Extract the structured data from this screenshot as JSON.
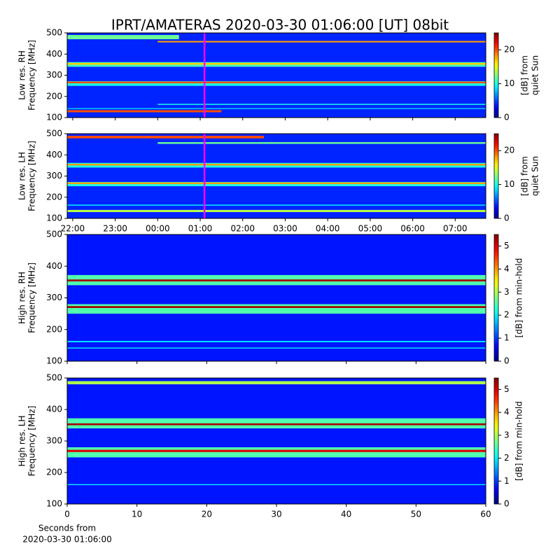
{
  "title": "IPRT/AMATERAS 2020-03-30 01:06:00 [UT]   08bit",
  "chart_data": [
    {
      "type": "heatmap",
      "ylabel": [
        "Low res. RH",
        "Frequency [MHz]"
      ],
      "ylim": [
        100,
        500
      ],
      "yticks": [
        100,
        200,
        300,
        400,
        500
      ],
      "xlim": [
        21.87,
        31.72
      ],
      "xticks": [
        22,
        23,
        24,
        25,
        26,
        27,
        28,
        29,
        30,
        31
      ],
      "marker_x": 25.1,
      "marker_color": "#ff00ff",
      "colorbar": {
        "label": [
          "[dB] from",
          "quiet Sun"
        ],
        "lim": [
          0,
          25
        ],
        "ticks": [
          0,
          10,
          20
        ]
      },
      "background": 4,
      "bands": [
        {
          "y0": 340,
          "y1": 362,
          "value": 11
        },
        {
          "y0": 250,
          "y1": 272,
          "value": 10
        },
        {
          "y0": 350,
          "y1": 358,
          "value": 17
        },
        {
          "y0": 262,
          "y1": 270,
          "value": 20
        },
        {
          "y0": 470,
          "y1": 490,
          "value": 12,
          "x0": 21.87,
          "x1": 24.5
        },
        {
          "y0": 455,
          "y1": 462,
          "value": 18,
          "x0": 24.0,
          "x1": 31.72
        },
        {
          "y0": 160,
          "y1": 165,
          "value": 10,
          "x0": 24.0,
          "x1": 31.72
        },
        {
          "y0": 140,
          "y1": 145,
          "value": 8
        },
        {
          "y0": 125,
          "y1": 135,
          "value": 20,
          "x0": 21.87,
          "x1": 25.5
        }
      ]
    },
    {
      "type": "heatmap",
      "ylabel": [
        "Low res. LH",
        "Frequency [MHz]"
      ],
      "ylim": [
        100,
        500
      ],
      "yticks": [
        100,
        200,
        300,
        400,
        500
      ],
      "xlim": [
        21.87,
        31.72
      ],
      "xticks": [
        {
          "value": 22,
          "label": "22:00"
        },
        {
          "value": 23,
          "label": "23:00"
        },
        {
          "value": 24,
          "label": "00:00"
        },
        {
          "value": 25,
          "label": "01:00"
        },
        {
          "value": 26,
          "label": "02:00"
        },
        {
          "value": 27,
          "label": "03:00"
        },
        {
          "value": 28,
          "label": "04:00"
        },
        {
          "value": 29,
          "label": "05:00"
        },
        {
          "value": 30,
          "label": "06:00"
        },
        {
          "value": 31,
          "label": "07:00"
        }
      ],
      "marker_x": 25.1,
      "marker_color": "#ff00ff",
      "colorbar": {
        "label": [
          "[dB] from",
          "quiet Sun"
        ],
        "lim": [
          0,
          25
        ],
        "ticks": [
          0,
          10,
          20
        ]
      },
      "background": 4,
      "bands": [
        {
          "y0": 340,
          "y1": 362,
          "value": 10
        },
        {
          "y0": 252,
          "y1": 272,
          "value": 10
        },
        {
          "y0": 350,
          "y1": 358,
          "value": 18
        },
        {
          "y0": 262,
          "y1": 270,
          "value": 18
        },
        {
          "y0": 478,
          "y1": 490,
          "value": 20,
          "x0": 21.87,
          "x1": 26.5
        },
        {
          "y0": 452,
          "y1": 460,
          "value": 12,
          "x0": 24.0,
          "x1": 31.72
        },
        {
          "y0": 160,
          "y1": 165,
          "value": 9
        },
        {
          "y0": 130,
          "y1": 140,
          "value": 14
        }
      ]
    },
    {
      "type": "heatmap",
      "ylabel": [
        "High res. RH",
        "Frequency [MHz]"
      ],
      "ylim": [
        100,
        500
      ],
      "yticks": [
        100,
        200,
        300,
        400,
        500
      ],
      "xlim": [
        0,
        60
      ],
      "xticks": [
        0,
        10,
        20,
        30,
        40,
        50,
        60
      ],
      "colorbar": {
        "label": [
          "[dB] from min-hold"
        ],
        "lim": [
          0,
          5.5
        ],
        "ticks": [
          0,
          1,
          2,
          3,
          4,
          5
        ]
      },
      "background": 0.8,
      "bands": [
        {
          "y0": 340,
          "y1": 372,
          "value": 2.5
        },
        {
          "y0": 250,
          "y1": 280,
          "value": 2.5
        },
        {
          "y0": 352,
          "y1": 358,
          "value": 5.3
        },
        {
          "y0": 268,
          "y1": 274,
          "value": 5.3
        },
        {
          "y0": 160,
          "y1": 164,
          "value": 2
        },
        {
          "y0": 140,
          "y1": 143,
          "value": 2
        }
      ]
    },
    {
      "type": "heatmap",
      "ylabel": [
        "High res. LH",
        "Frequency [MHz]"
      ],
      "ylim": [
        100,
        500
      ],
      "yticks": [
        100,
        200,
        300,
        400,
        500
      ],
      "xlim": [
        0,
        60
      ],
      "xticks": [
        0,
        10,
        20,
        30,
        40,
        50,
        60
      ],
      "xlabel": [
        "Seconds from",
        "2020-03-30 01:06:00"
      ],
      "colorbar": {
        "label": [
          "[dB] from min-hold"
        ],
        "lim": [
          0,
          5.5
        ],
        "ticks": [
          0,
          1,
          2,
          3,
          4,
          5
        ]
      },
      "background": 0.8,
      "bands": [
        {
          "y0": 340,
          "y1": 372,
          "value": 2.5
        },
        {
          "y0": 248,
          "y1": 280,
          "value": 2.5
        },
        {
          "y0": 480,
          "y1": 490,
          "value": 3
        },
        {
          "y0": 350,
          "y1": 356,
          "value": 5.3
        },
        {
          "y0": 265,
          "y1": 272,
          "value": 5
        },
        {
          "y0": 160,
          "y1": 163,
          "value": 2
        }
      ]
    }
  ]
}
